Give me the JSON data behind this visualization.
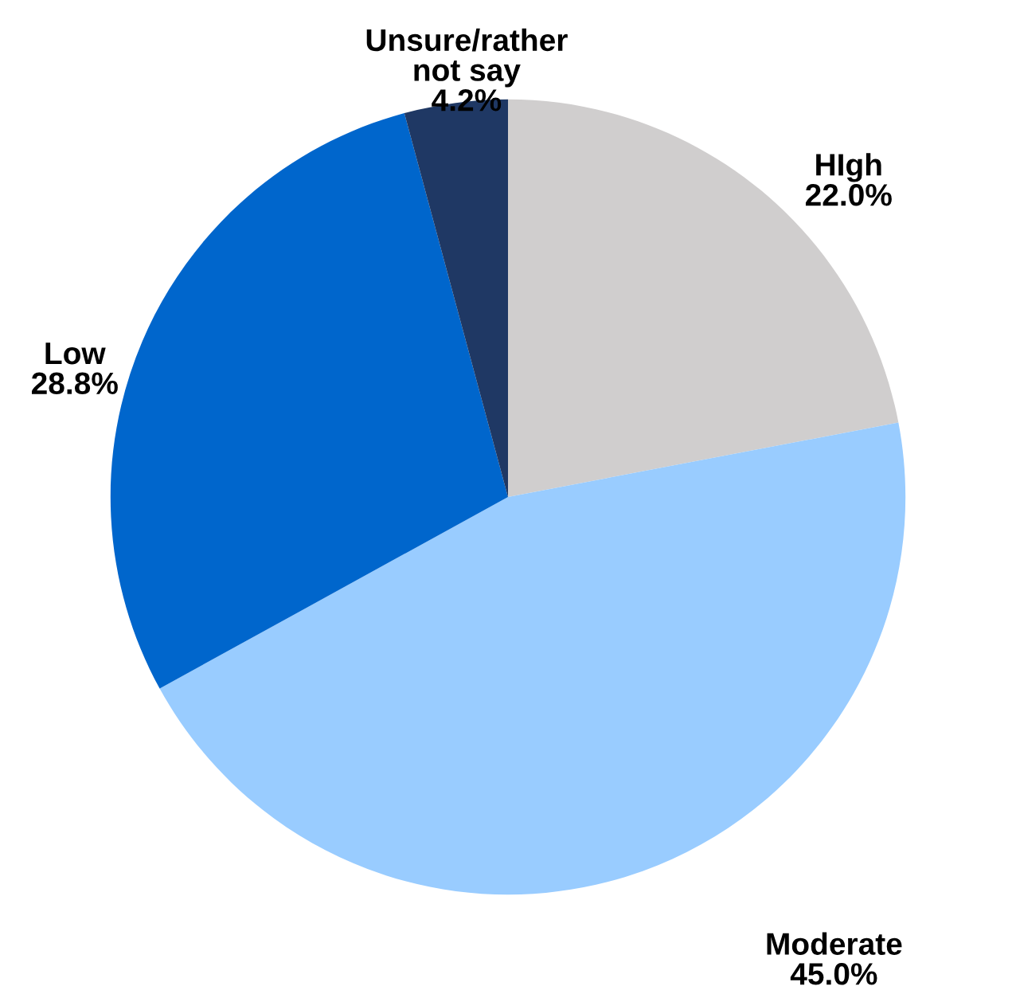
{
  "chart_data": {
    "type": "pie",
    "categories": [
      "HIgh",
      "Moderate",
      "Low",
      "Unsure/rather\nnot say"
    ],
    "values": [
      22.0,
      45.0,
      28.8,
      4.2
    ],
    "colors": [
      "#d0cece",
      "#99ccff",
      "#0066cc",
      "#1f3864"
    ],
    "value_labels": [
      "22.0%",
      "45.0%",
      "28.8%",
      "4.2%"
    ]
  }
}
